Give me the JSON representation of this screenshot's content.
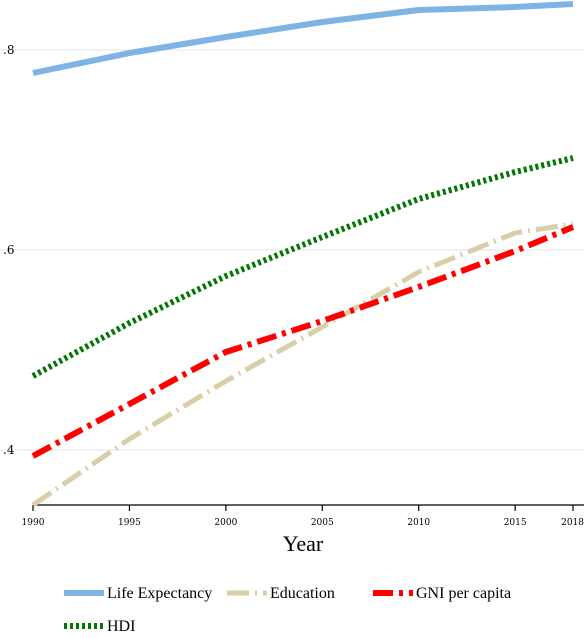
{
  "chart_data": {
    "type": "line",
    "xlabel": "Year",
    "ylabel": "",
    "x": [
      1990,
      1995,
      2000,
      2005,
      2010,
      2015,
      2018
    ],
    "x_ticks": [
      "1990",
      "1995",
      "2000",
      "2005",
      "2010",
      "2015",
      "2018"
    ],
    "y_ticks": [
      {
        "value": 0.4,
        "label": ".4"
      },
      {
        "value": 0.6,
        "label": ".6"
      },
      {
        "value": 0.8,
        "label": ".8"
      }
    ],
    "xlim": [
      1990,
      2018
    ],
    "ylim": [
      0.345,
      0.85
    ],
    "grid": true,
    "legend_position": "bottom",
    "series": [
      {
        "name": "Life Expectancy",
        "color": "#7db4e4",
        "style": "solid",
        "values": [
          0.777,
          0.797,
          0.813,
          0.828,
          0.84,
          0.843,
          0.846
        ]
      },
      {
        "name": "Education",
        "color": "#d8cfa8",
        "style": "dash",
        "values": [
          0.345,
          0.411,
          0.469,
          0.523,
          0.578,
          0.617,
          0.626
        ]
      },
      {
        "name": "GNI per capita",
        "color": "#ff0000",
        "style": "dashdot",
        "values": [
          0.394,
          0.446,
          0.498,
          0.529,
          0.563,
          0.599,
          0.623
        ]
      },
      {
        "name": "HDI",
        "color": "#007700",
        "style": "dot",
        "values": [
          0.474,
          0.527,
          0.574,
          0.613,
          0.651,
          0.678,
          0.692
        ]
      }
    ]
  }
}
